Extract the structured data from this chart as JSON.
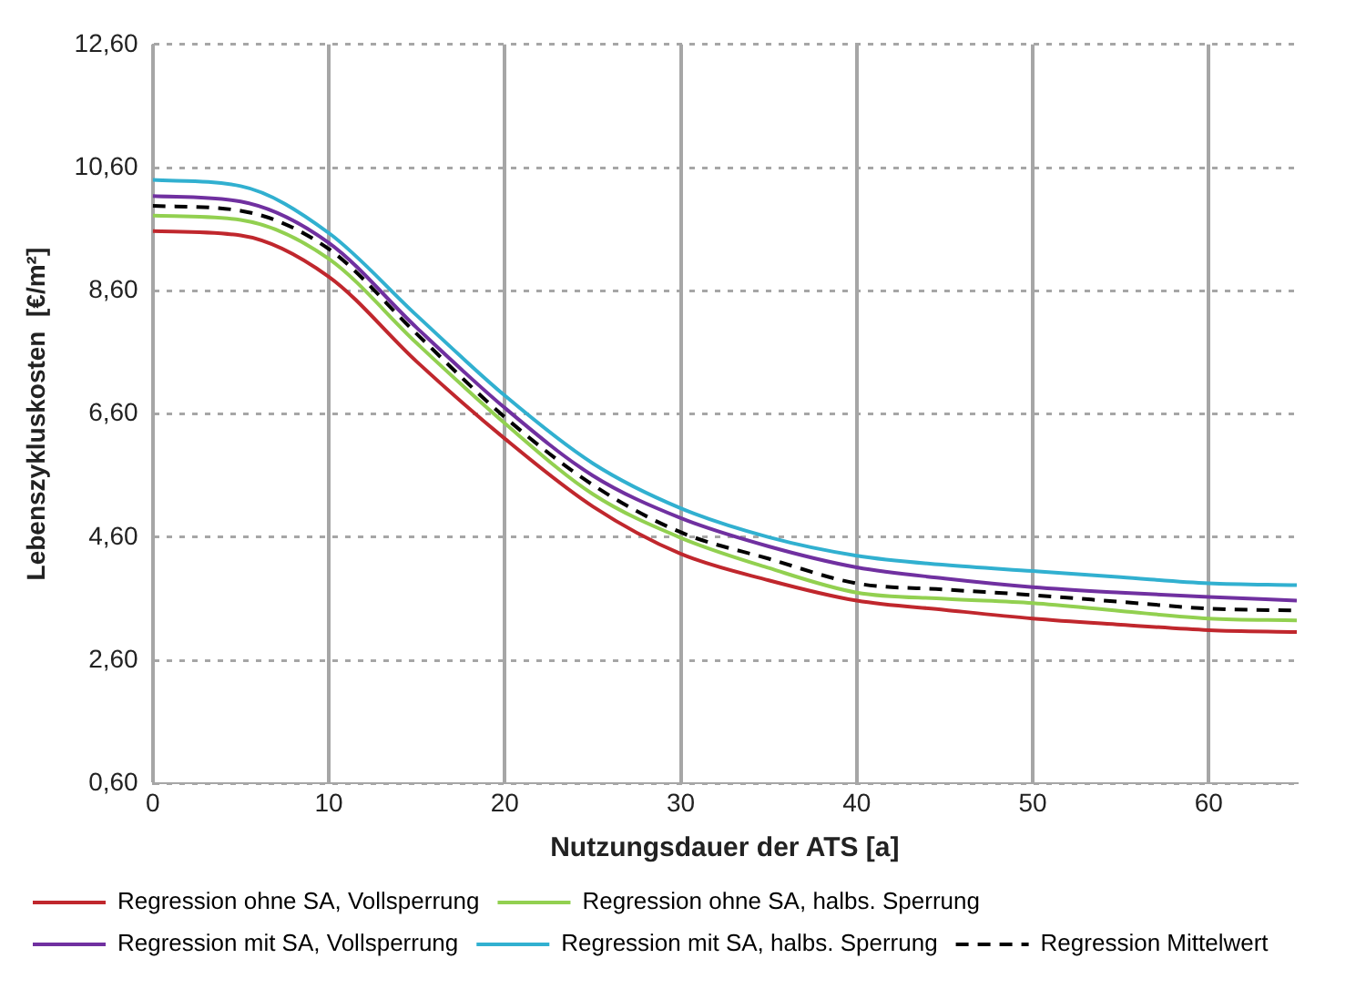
{
  "chart_data": {
    "type": "line",
    "xlabel": "Nutzungsdauer der ATS [a]",
    "ylabel": "Lebenszykluskosten  [€/m²]",
    "x": [
      0,
      5,
      10,
      15,
      20,
      25,
      30,
      35,
      40,
      45,
      50,
      55,
      60,
      65
    ],
    "series": [
      {
        "name": "Regression ohne SA, Vollsperrung",
        "color": "#c0272d",
        "values": [
          9.57,
          9.5,
          8.83,
          7.45,
          6.2,
          5.1,
          4.33,
          3.9,
          3.57,
          3.42,
          3.28,
          3.18,
          3.09,
          3.06
        ]
      },
      {
        "name": "Regression ohne SA, halbs. Sperrung",
        "color": "#92d050",
        "values": [
          9.82,
          9.75,
          9.12,
          7.75,
          6.45,
          5.3,
          4.59,
          4.1,
          3.7,
          3.6,
          3.53,
          3.4,
          3.28,
          3.25
        ]
      },
      {
        "name": "Regression mit SA, Vollsperrung",
        "color": "#7030a0",
        "values": [
          10.14,
          10.05,
          9.38,
          8.0,
          6.7,
          5.6,
          4.91,
          4.45,
          4.11,
          3.93,
          3.79,
          3.7,
          3.63,
          3.57
        ]
      },
      {
        "name": "Regression mit SA, halbs. Sperrung",
        "color": "#31b0d0",
        "values": [
          10.4,
          10.3,
          9.54,
          8.2,
          6.9,
          5.8,
          5.07,
          4.6,
          4.3,
          4.15,
          4.05,
          3.95,
          3.85,
          3.82
        ]
      },
      {
        "name": "Regression Mittelwert",
        "color": "#000000",
        "line_style": "dashed",
        "values": [
          9.98,
          9.9,
          9.28,
          7.9,
          6.55,
          5.45,
          4.68,
          4.25,
          3.85,
          3.75,
          3.66,
          3.55,
          3.44,
          3.41
        ]
      }
    ],
    "xlim": [
      0,
      65
    ],
    "xticks": [
      0,
      10,
      20,
      30,
      40,
      50,
      60
    ],
    "ylim": [
      0.6,
      12.6
    ],
    "yticks": [
      {
        "value": 0.6,
        "label": "0,60"
      },
      {
        "value": 2.6,
        "label": "2,60"
      },
      {
        "value": 4.6,
        "label": "4,60"
      },
      {
        "value": 6.6,
        "label": "6,60"
      },
      {
        "value": 8.6,
        "label": "8,60"
      },
      {
        "value": 10.6,
        "label": "10,60"
      },
      {
        "value": 12.6,
        "label": "12,60"
      }
    ],
    "grid": true,
    "legend": "bottom",
    "marker": "none",
    "line_style": "solid"
  }
}
